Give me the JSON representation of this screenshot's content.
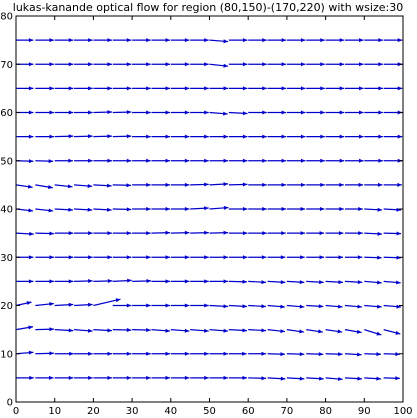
{
  "chart_data": {
    "type": "quiver",
    "title": "lukas-kanande optical flow for region (80,150)-(170,220) with wsize:30",
    "xlabel": "",
    "ylabel": "",
    "xlim": [
      0,
      100
    ],
    "ylim": [
      0,
      80
    ],
    "x_ticks": [
      "0",
      "10",
      "20",
      "30",
      "40",
      "50",
      "60",
      "70",
      "80",
      "90",
      "100"
    ],
    "y_ticks": [
      "0",
      "10",
      "20",
      "30",
      "40",
      "50",
      "60",
      "70",
      "80"
    ],
    "grid": false,
    "x_positions": [
      0,
      5,
      10,
      15,
      20,
      25,
      30,
      35,
      40,
      45,
      50,
      55,
      60,
      65,
      70,
      75,
      80,
      85,
      90,
      95
    ],
    "rows": [
      {
        "y": 5,
        "u": [
          4.6,
          4.7,
          4.8,
          4.8,
          4.8,
          4.8,
          4.8,
          4.8,
          4.8,
          4.8,
          4.8,
          4.7,
          4.6,
          4.6,
          4.5,
          4.5,
          4.4,
          4.4,
          4.3,
          4.2
        ],
        "v": [
          0,
          0,
          0,
          0,
          0,
          0,
          0,
          0,
          0,
          0,
          0,
          0,
          -0.1,
          -0.2,
          -0.2,
          -0.2,
          -0.3,
          -0.2,
          -0.2,
          -0.1
        ]
      },
      {
        "y": 10,
        "u": [
          4.5,
          4.8,
          4.9,
          4.8,
          4.8,
          4.8,
          4.8,
          4.8,
          4.8,
          4.8,
          4.8,
          4.6,
          4.6,
          4.5,
          4.5,
          4.4,
          4.4,
          4.3,
          4.3,
          4.2
        ],
        "v": [
          0.3,
          0.1,
          0,
          0,
          0,
          0,
          0,
          0,
          0,
          0,
          0,
          0,
          0,
          -0.1,
          -0.1,
          -0.1,
          -0.1,
          -0.2,
          -0.1,
          -0.1
        ]
      },
      {
        "y": 15,
        "u": [
          4.4,
          4.8,
          4.8,
          4.8,
          4.8,
          4.8,
          4.8,
          4.8,
          4.8,
          4.8,
          4.8,
          4.7,
          4.6,
          4.5,
          4.4,
          4.3,
          4.3,
          4.3,
          4.4,
          4.3
        ],
        "v": [
          0.6,
          0.1,
          -0.2,
          -0.3,
          -0.2,
          -0.1,
          -0.1,
          -0.3,
          -0.3,
          -0.3,
          -0.3,
          -0.2,
          -0.2,
          -0.4,
          -0.5,
          -0.5,
          -0.5,
          -0.6,
          -1.1,
          -0.9
        ]
      },
      {
        "y": 20,
        "u": [
          4.0,
          4.8,
          4.8,
          4.8,
          7.0,
          4.8,
          4.8,
          4.8,
          4.8,
          4.8,
          4.8,
          4.7,
          4.6,
          4.5,
          4.5,
          4.4,
          4.4,
          4.4,
          4.5,
          4.5
        ],
        "v": [
          0.7,
          0.4,
          0.2,
          0.2,
          1.3,
          0,
          0,
          0,
          0,
          0,
          -0.2,
          -0.2,
          -0.2,
          -0.3,
          -0.3,
          -0.2,
          -0.3,
          -0.3,
          -0.3,
          -0.3
        ]
      },
      {
        "y": 25,
        "u": [
          4.5,
          4.8,
          4.8,
          4.8,
          4.9,
          4.9,
          4.9,
          4.8,
          4.8,
          4.8,
          4.8,
          4.7,
          4.6,
          4.6,
          4.5,
          4.5,
          4.5,
          4.5,
          4.5,
          4.4
        ],
        "v": [
          0,
          0,
          0,
          0.1,
          0.1,
          0.2,
          0.1,
          0,
          0,
          0,
          0,
          -0.1,
          -0.2,
          -0.2,
          -0.2,
          -0.2,
          -0.2,
          -0.2,
          -0.3,
          -0.3
        ]
      },
      {
        "y": 30,
        "u": [
          4.5,
          4.8,
          4.8,
          4.8,
          4.8,
          4.8,
          4.8,
          4.8,
          4.8,
          4.8,
          4.8,
          4.8,
          4.7,
          4.6,
          4.6,
          4.6,
          4.5,
          4.5,
          4.5,
          4.5
        ],
        "v": [
          0,
          0,
          0,
          0,
          0,
          0,
          0,
          0,
          0,
          0,
          0,
          0,
          0,
          0,
          0,
          0,
          0,
          0,
          -0.1,
          -0.1
        ]
      },
      {
        "y": 35,
        "u": [
          4.6,
          4.8,
          4.8,
          4.8,
          4.8,
          4.8,
          4.8,
          4.8,
          4.8,
          4.8,
          4.8,
          4.8,
          4.8,
          4.7,
          4.7,
          4.6,
          4.6,
          4.6,
          4.6,
          4.5
        ],
        "v": [
          -0.2,
          -0.1,
          0,
          0,
          0,
          0,
          0,
          0.1,
          0.1,
          0.1,
          0.1,
          0,
          0,
          0,
          0,
          0,
          0,
          0,
          -0.2,
          -0.1
        ]
      },
      {
        "y": 40,
        "u": [
          4.4,
          4.6,
          4.7,
          4.7,
          4.7,
          4.8,
          4.8,
          4.8,
          4.8,
          4.8,
          4.9,
          4.8,
          4.8,
          4.8,
          4.7,
          4.7,
          4.7,
          4.6,
          4.6,
          4.5
        ],
        "v": [
          -0.4,
          -0.4,
          -0.2,
          -0.2,
          -0.2,
          -0.1,
          0,
          0,
          0,
          0.2,
          0.3,
          0,
          0,
          0,
          0,
          0,
          0,
          0,
          -0.2,
          -0.2
        ]
      },
      {
        "y": 45,
        "u": [
          4.3,
          4.5,
          4.6,
          4.7,
          4.7,
          4.7,
          4.8,
          4.8,
          4.8,
          4.8,
          4.8,
          4.8,
          4.8,
          4.8,
          4.8,
          4.8,
          4.7,
          4.7,
          4.7,
          4.7
        ],
        "v": [
          -0.5,
          -0.6,
          -0.4,
          -0.3,
          -0.2,
          -0.1,
          0,
          0,
          0,
          0.1,
          0.2,
          0.1,
          0,
          0,
          0,
          0,
          0,
          0,
          0,
          0
        ]
      },
      {
        "y": 50,
        "u": [
          4.5,
          4.6,
          4.7,
          4.8,
          4.8,
          4.8,
          4.8,
          4.8,
          4.8,
          4.8,
          4.8,
          4.8,
          4.8,
          4.8,
          4.8,
          4.8,
          4.8,
          4.8,
          4.8,
          4.8
        ],
        "v": [
          -0.1,
          -0.1,
          0,
          0,
          0,
          0,
          0,
          0,
          0,
          0,
          0,
          0,
          0,
          0,
          0,
          0,
          0,
          0,
          0,
          0
        ]
      },
      {
        "y": 55,
        "u": [
          4.5,
          4.8,
          4.8,
          4.8,
          4.8,
          4.8,
          4.8,
          4.8,
          4.8,
          4.8,
          4.8,
          4.8,
          4.8,
          4.8,
          4.8,
          4.8,
          4.8,
          4.8,
          4.8,
          4.8
        ],
        "v": [
          0,
          0,
          0.1,
          0.1,
          0.1,
          0.1,
          0,
          0,
          0,
          0,
          0,
          0,
          0,
          0,
          0,
          0,
          0,
          0,
          0,
          0
        ]
      },
      {
        "y": 60,
        "u": [
          4.5,
          4.8,
          4.8,
          4.8,
          4.8,
          4.8,
          4.8,
          4.8,
          4.8,
          4.8,
          4.7,
          4.8,
          4.8,
          4.8,
          4.8,
          4.8,
          4.8,
          4.8,
          4.8,
          4.8
        ],
        "v": [
          0,
          0,
          0,
          0,
          0.1,
          0.1,
          0,
          0,
          0,
          0,
          -0.3,
          -0.2,
          0,
          0,
          0,
          0,
          0,
          0,
          0,
          0
        ]
      },
      {
        "y": 65,
        "u": [
          4.5,
          4.8,
          4.8,
          4.8,
          4.8,
          4.8,
          4.8,
          4.8,
          4.8,
          4.8,
          4.8,
          4.8,
          4.8,
          4.8,
          4.8,
          4.8,
          4.8,
          4.8,
          4.8,
          4.8
        ],
        "v": [
          0,
          0,
          0,
          0,
          0,
          0,
          0,
          0,
          0,
          0,
          0,
          0,
          0,
          0,
          0,
          0,
          0,
          0,
          0,
          0
        ]
      },
      {
        "y": 70,
        "u": [
          4.5,
          4.8,
          4.8,
          4.8,
          4.8,
          4.8,
          4.8,
          4.8,
          4.8,
          4.8,
          4.8,
          4.8,
          4.8,
          4.8,
          4.8,
          4.8,
          4.8,
          4.8,
          4.8,
          4.8
        ],
        "v": [
          0,
          0,
          0,
          0,
          0,
          0,
          0,
          0,
          0,
          0,
          -0.4,
          0,
          0,
          0,
          0,
          0,
          0,
          0,
          0,
          0
        ]
      },
      {
        "y": 75,
        "u": [
          4.5,
          4.8,
          4.8,
          4.8,
          4.8,
          4.8,
          4.8,
          4.8,
          4.8,
          4.8,
          4.8,
          4.8,
          4.8,
          4.8,
          4.8,
          4.8,
          4.8,
          4.8,
          4.8,
          4.8
        ],
        "v": [
          0,
          0,
          0,
          0,
          0,
          0,
          0,
          0,
          0,
          0,
          -0.3,
          0,
          0,
          0,
          0,
          0,
          0,
          0,
          0,
          0
        ]
      }
    ]
  },
  "colors": {
    "arrow": "#0000cc",
    "axes": "#000000",
    "background": "#ffffff"
  }
}
